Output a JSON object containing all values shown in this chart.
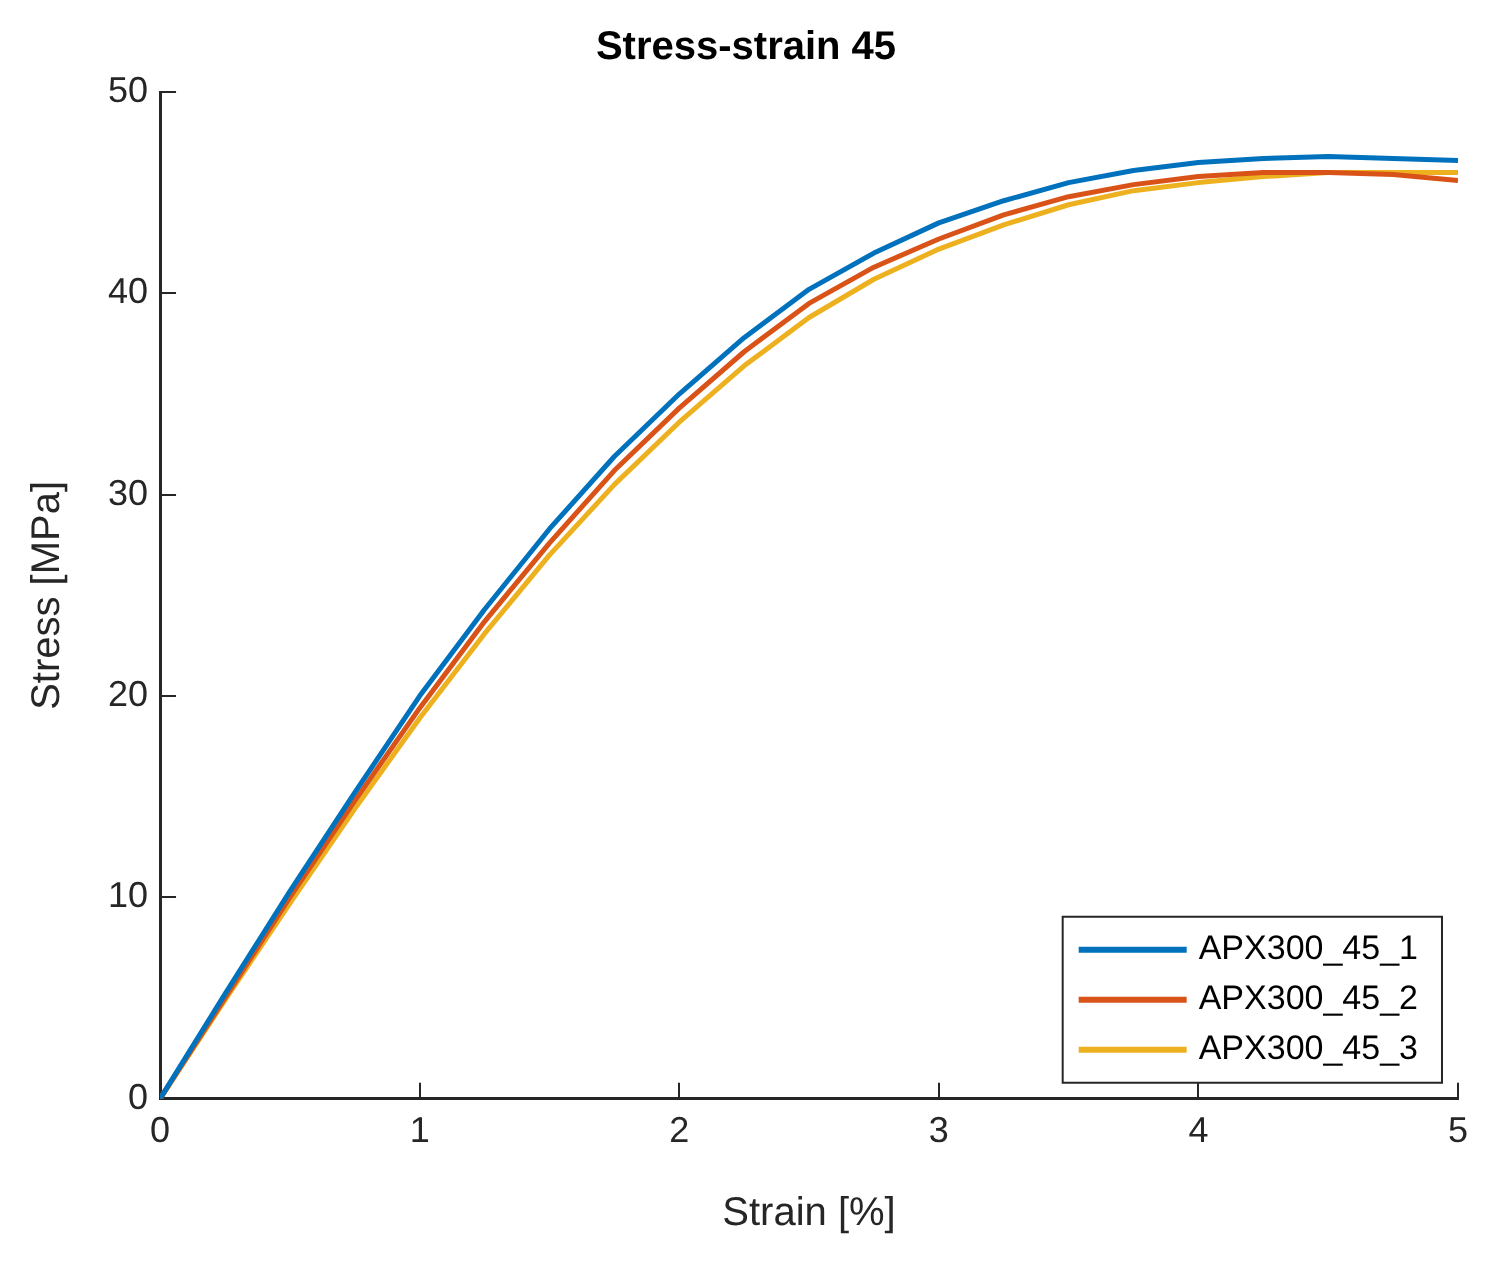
{
  "chart_data": {
    "type": "line",
    "title": "Stress-strain 45",
    "xlabel": "Strain [%]",
    "ylabel": "Stress [MPa]",
    "x": [
      0,
      0.25,
      0.5,
      0.75,
      1,
      1.25,
      1.5,
      1.75,
      2,
      2.25,
      2.5,
      2.75,
      3,
      3.25,
      3.5,
      3.75,
      4,
      4.25,
      4.5,
      4.75,
      5
    ],
    "series": [
      {
        "name": "APX300_45_1",
        "color": "#0072bd",
        "values": [
          0,
          5.2,
          10.3,
          15.2,
          20,
          24.3,
          28.3,
          31.9,
          35,
          37.8,
          40.2,
          42.0,
          43.5,
          44.6,
          45.5,
          46.1,
          46.5,
          46.7,
          46.8,
          46.7,
          46.6
        ]
      },
      {
        "name": "APX300_45_2",
        "color": "#d95319",
        "values": [
          0,
          5.0,
          10.0,
          14.8,
          19.4,
          23.7,
          27.6,
          31.2,
          34.3,
          37.1,
          39.5,
          41.3,
          42.7,
          43.9,
          44.8,
          45.4,
          45.8,
          46.0,
          46.0,
          45.9,
          45.6
        ]
      },
      {
        "name": "APX300_45_3",
        "color": "#edb120",
        "values": [
          0,
          4.9,
          9.7,
          14.4,
          18.9,
          23.1,
          27.0,
          30.5,
          33.6,
          36.4,
          38.8,
          40.7,
          42.2,
          43.4,
          44.4,
          45.1,
          45.5,
          45.8,
          46.0,
          46.0,
          46.0
        ]
      }
    ],
    "xlim": [
      0,
      5
    ],
    "xticks": [
      0,
      1,
      2,
      3,
      4,
      5
    ],
    "ylim": [
      0,
      50
    ],
    "yticks": [
      0,
      10,
      20,
      30,
      40,
      50
    ],
    "grid": false,
    "legend": "bottom right",
    "marker": "none",
    "line_style": "solid"
  }
}
